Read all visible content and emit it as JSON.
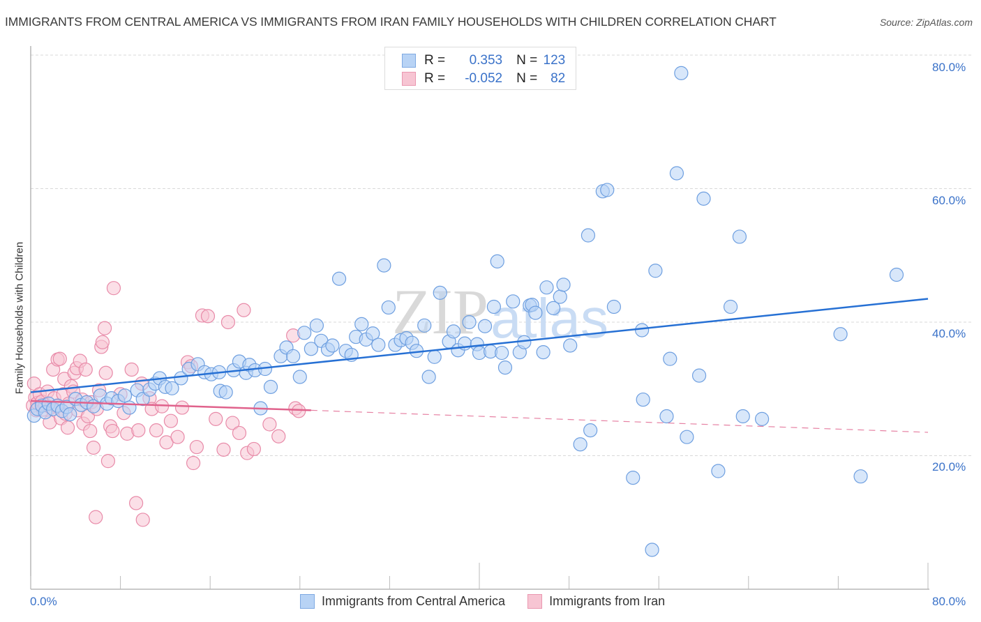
{
  "title": "IMMIGRANTS FROM CENTRAL AMERICA VS IMMIGRANTS FROM IRAN FAMILY HOUSEHOLDS WITH CHILDREN CORRELATION CHART",
  "source": "Source: ZipAtlas.com",
  "legend": {
    "rows": [
      {
        "r_label": "R =",
        "r_value": "0.353",
        "n_label": "N =",
        "n_value": "123",
        "color": "#b8d3f5"
      },
      {
        "r_label": "R =",
        "r_value": "-0.052",
        "n_label": "N =",
        "n_value": "82",
        "color": "#f7c5d3"
      }
    ]
  },
  "chart_data": {
    "type": "scatter",
    "title": "IMMIGRANTS FROM CENTRAL AMERICA VS IMMIGRANTS FROM IRAN FAMILY HOUSEHOLDS WITH CHILDREN CORRELATION CHART",
    "xlabel": "",
    "ylabel": "Family Households with Children",
    "xlim": [
      0,
      80
    ],
    "ylim": [
      0,
      80
    ],
    "x_tick_labels": [
      "0.0%",
      "80.0%"
    ],
    "y_tick_labels": [
      "20.0%",
      "40.0%",
      "60.0%",
      "80.0%"
    ],
    "y_ticks": [
      20,
      40,
      60,
      80
    ],
    "x_minor_ticks": [
      0,
      8,
      16,
      24,
      32,
      40,
      48,
      56,
      64,
      72,
      80
    ],
    "grid": true,
    "legend_position": "bottom",
    "watermark": "ZIPatlas",
    "series": [
      {
        "name": "Immigrants from Central America",
        "color": "#6e9fe0",
        "fill": "#b8d3f5",
        "r": 0.353,
        "n": 123,
        "trend": {
          "x": [
            0,
            80
          ],
          "y": [
            29.5,
            43.5
          ],
          "style": "solid",
          "color": "#2670d4"
        },
        "points": [
          [
            0.3,
            26.0
          ],
          [
            0.6,
            27.0
          ],
          [
            1.0,
            27.5
          ],
          [
            1.3,
            26.5
          ],
          [
            1.6,
            27.8
          ],
          [
            2.0,
            27.0
          ],
          [
            2.4,
            27.5
          ],
          [
            2.8,
            26.7
          ],
          [
            3.2,
            27.3
          ],
          [
            3.5,
            26.2
          ],
          [
            4.0,
            28.5
          ],
          [
            4.5,
            27.6
          ],
          [
            5.0,
            28.0
          ],
          [
            5.6,
            27.4
          ],
          [
            6.2,
            29.0
          ],
          [
            6.8,
            27.8
          ],
          [
            7.2,
            28.6
          ],
          [
            7.8,
            28.2
          ],
          [
            8.4,
            29.0
          ],
          [
            8.8,
            27.2
          ],
          [
            9.5,
            29.8
          ],
          [
            10.0,
            28.5
          ],
          [
            10.6,
            29.9
          ],
          [
            11.1,
            30.8
          ],
          [
            11.5,
            31.6
          ],
          [
            12.0,
            30.3
          ],
          [
            12.6,
            30.1
          ],
          [
            13.4,
            31.6
          ],
          [
            14.1,
            33.0
          ],
          [
            14.9,
            33.7
          ],
          [
            15.5,
            32.5
          ],
          [
            16.1,
            32.2
          ],
          [
            16.8,
            32.5
          ],
          [
            16.9,
            29.7
          ],
          [
            17.4,
            29.5
          ],
          [
            18.1,
            32.8
          ],
          [
            18.6,
            34.1
          ],
          [
            19.2,
            32.4
          ],
          [
            19.5,
            33.6
          ],
          [
            20.0,
            32.8
          ],
          [
            20.5,
            27.1
          ],
          [
            20.9,
            33.0
          ],
          [
            21.4,
            30.3
          ],
          [
            22.3,
            34.9
          ],
          [
            22.8,
            36.2
          ],
          [
            23.4,
            34.9
          ],
          [
            24.0,
            31.8
          ],
          [
            24.4,
            38.4
          ],
          [
            25.0,
            36.0
          ],
          [
            25.5,
            39.5
          ],
          [
            25.9,
            37.2
          ],
          [
            26.5,
            35.9
          ],
          [
            26.9,
            36.5
          ],
          [
            27.5,
            46.5
          ],
          [
            28.1,
            35.7
          ],
          [
            28.6,
            35.1
          ],
          [
            29.0,
            37.8
          ],
          [
            29.5,
            39.7
          ],
          [
            29.9,
            37.4
          ],
          [
            30.5,
            38.3
          ],
          [
            31.0,
            36.6
          ],
          [
            31.5,
            48.5
          ],
          [
            31.9,
            42.2
          ],
          [
            32.5,
            36.6
          ],
          [
            33.0,
            37.3
          ],
          [
            33.5,
            37.6
          ],
          [
            34.0,
            36.9
          ],
          [
            34.4,
            35.7
          ],
          [
            35.1,
            39.5
          ],
          [
            35.5,
            31.8
          ],
          [
            36.0,
            34.8
          ],
          [
            36.5,
            44.4
          ],
          [
            37.3,
            37.1
          ],
          [
            37.7,
            38.6
          ],
          [
            38.1,
            35.8
          ],
          [
            38.7,
            36.8
          ],
          [
            39.1,
            40.0
          ],
          [
            39.8,
            36.7
          ],
          [
            40.0,
            35.4
          ],
          [
            40.5,
            39.4
          ],
          [
            41.0,
            35.6
          ],
          [
            41.3,
            42.3
          ],
          [
            41.6,
            49.1
          ],
          [
            42.0,
            35.4
          ],
          [
            42.3,
            33.2
          ],
          [
            43.0,
            43.1
          ],
          [
            43.6,
            35.5
          ],
          [
            44.0,
            37.0
          ],
          [
            44.5,
            42.5
          ],
          [
            44.7,
            42.6
          ],
          [
            45.0,
            41.4
          ],
          [
            45.7,
            35.5
          ],
          [
            46.0,
            45.2
          ],
          [
            46.6,
            42.1
          ],
          [
            47.2,
            43.8
          ],
          [
            47.5,
            45.6
          ],
          [
            48.1,
            36.5
          ],
          [
            49.0,
            21.7
          ],
          [
            49.7,
            53.0
          ],
          [
            49.9,
            23.8
          ],
          [
            51.0,
            59.6
          ],
          [
            51.4,
            59.8
          ],
          [
            52.0,
            42.3
          ],
          [
            53.7,
            16.7
          ],
          [
            54.5,
            38.8
          ],
          [
            54.6,
            28.4
          ],
          [
            55.7,
            47.7
          ],
          [
            56.7,
            25.9
          ],
          [
            57.0,
            34.5
          ],
          [
            57.6,
            62.3
          ],
          [
            58.0,
            77.3
          ],
          [
            58.5,
            22.8
          ],
          [
            59.6,
            32.0
          ],
          [
            60.0,
            58.5
          ],
          [
            61.3,
            17.7
          ],
          [
            62.4,
            42.3
          ],
          [
            63.2,
            52.8
          ],
          [
            63.5,
            25.9
          ],
          [
            65.2,
            25.5
          ],
          [
            72.2,
            38.2
          ],
          [
            74.0,
            16.9
          ],
          [
            77.2,
            47.1
          ],
          [
            55.4,
            5.9
          ]
        ]
      },
      {
        "name": "Immigrants from Iran",
        "color": "#e88aa8",
        "fill": "#f7c5d3",
        "r": -0.052,
        "n": 82,
        "trend": {
          "x": [
            0,
            25
          ],
          "y": [
            28.2,
            26.8
          ],
          "style": "solid",
          "color": "#e0628c",
          "extension": {
            "x": [
              25,
              80
            ],
            "y": [
              26.8,
              23.5
            ],
            "style": "dashed"
          }
        },
        "points": [
          [
            0.2,
            27.5
          ],
          [
            0.3,
            30.8
          ],
          [
            0.4,
            28.7
          ],
          [
            0.5,
            26.8
          ],
          [
            0.6,
            27.9
          ],
          [
            0.8,
            29.2
          ],
          [
            1.0,
            28.1
          ],
          [
            1.1,
            26.9
          ],
          [
            1.3,
            27.6
          ],
          [
            1.5,
            29.6
          ],
          [
            1.7,
            25.0
          ],
          [
            1.8,
            27.2
          ],
          [
            2.0,
            32.9
          ],
          [
            2.1,
            28.6
          ],
          [
            2.3,
            27.4
          ],
          [
            2.4,
            34.4
          ],
          [
            2.6,
            34.5
          ],
          [
            2.7,
            25.6
          ],
          [
            2.9,
            29.2
          ],
          [
            3.0,
            31.5
          ],
          [
            3.1,
            26.3
          ],
          [
            3.3,
            24.2
          ],
          [
            3.4,
            27.8
          ],
          [
            3.6,
            30.4
          ],
          [
            3.8,
            29.6
          ],
          [
            3.9,
            32.4
          ],
          [
            4.1,
            33.1
          ],
          [
            4.2,
            26.8
          ],
          [
            4.4,
            34.2
          ],
          [
            4.6,
            28.4
          ],
          [
            4.7,
            24.8
          ],
          [
            4.9,
            32.9
          ],
          [
            5.1,
            25.9
          ],
          [
            5.3,
            23.7
          ],
          [
            5.4,
            28.0
          ],
          [
            5.6,
            21.2
          ],
          [
            5.8,
            10.8
          ],
          [
            5.9,
            27.0
          ],
          [
            6.1,
            29.8
          ],
          [
            6.3,
            36.3
          ],
          [
            6.4,
            37.0
          ],
          [
            6.6,
            39.1
          ],
          [
            6.7,
            32.4
          ],
          [
            6.9,
            19.2
          ],
          [
            7.1,
            24.4
          ],
          [
            7.3,
            23.7
          ],
          [
            7.4,
            45.1
          ],
          [
            8.0,
            29.2
          ],
          [
            8.3,
            26.4
          ],
          [
            8.6,
            23.3
          ],
          [
            9.0,
            32.9
          ],
          [
            9.4,
            12.9
          ],
          [
            9.6,
            23.8
          ],
          [
            9.9,
            30.8
          ],
          [
            10.0,
            10.4
          ],
          [
            10.6,
            28.6
          ],
          [
            10.8,
            27.0
          ],
          [
            11.2,
            23.8
          ],
          [
            11.7,
            27.4
          ],
          [
            12.1,
            22.0
          ],
          [
            12.5,
            25.2
          ],
          [
            13.1,
            22.8
          ],
          [
            13.5,
            27.2
          ],
          [
            14.0,
            34.0
          ],
          [
            14.3,
            33.4
          ],
          [
            14.5,
            18.9
          ],
          [
            14.8,
            21.3
          ],
          [
            15.3,
            41.0
          ],
          [
            15.8,
            40.9
          ],
          [
            16.5,
            25.5
          ],
          [
            17.2,
            20.9
          ],
          [
            17.6,
            40.0
          ],
          [
            18.0,
            24.9
          ],
          [
            18.6,
            23.4
          ],
          [
            19.0,
            41.8
          ],
          [
            19.3,
            20.4
          ],
          [
            19.9,
            21.0
          ],
          [
            21.3,
            24.7
          ],
          [
            22.1,
            22.9
          ],
          [
            23.4,
            38.0
          ],
          [
            23.6,
            27.1
          ],
          [
            23.9,
            26.7
          ]
        ]
      }
    ]
  },
  "bottom_legend": [
    {
      "label": "Immigrants from Central America"
    },
    {
      "label": "Immigrants from Iran"
    }
  ]
}
